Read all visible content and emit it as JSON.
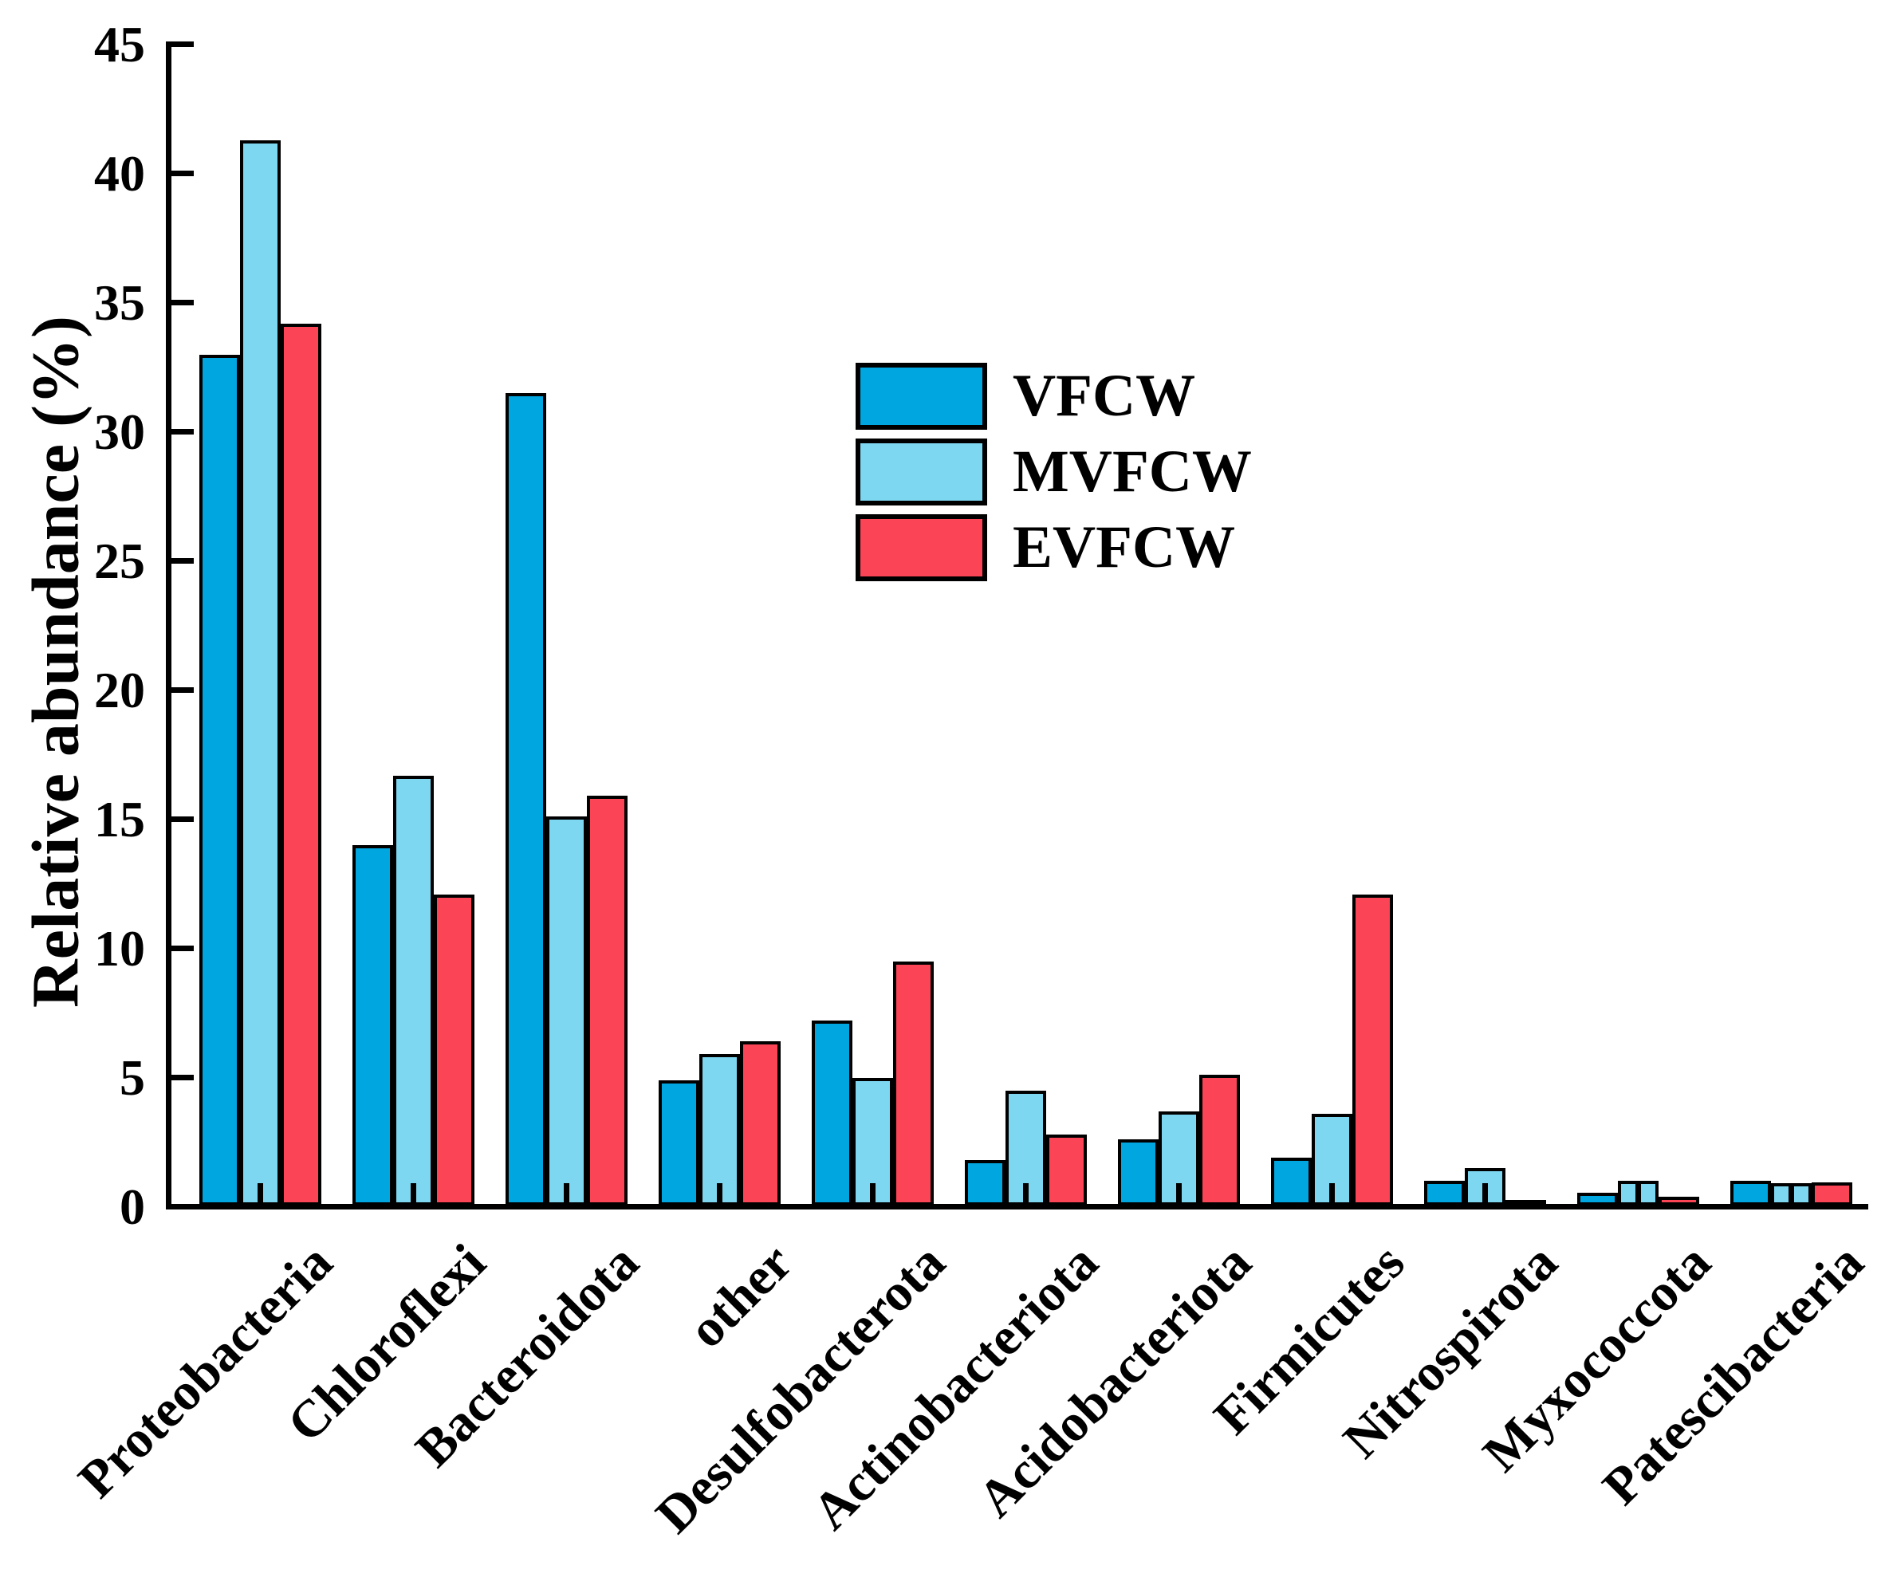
{
  "figure": {
    "background": "#ffffff",
    "axis_color": "#000000"
  },
  "chart_data": {
    "type": "bar",
    "title": "",
    "xlabel": "",
    "ylabel": "Relative abundance (%)",
    "ylim": [
      0,
      45
    ],
    "yticks": [
      0,
      5,
      10,
      15,
      20,
      25,
      30,
      35,
      40,
      45
    ],
    "grid": false,
    "tick_direction": "in",
    "legend": {
      "position": "inside-upper-middle",
      "entries": [
        "VFCW",
        "MVFCW",
        "EVFCW"
      ]
    },
    "categories": [
      "Proteobacteria",
      "Chloroflexi",
      "Bacteroidota",
      "other",
      "Desulfobacterota",
      "Actinobacteriota",
      "Acidobacteriota",
      "Firmicutes",
      "Nitrospirota",
      "Myxococcota",
      "Patescibacteria"
    ],
    "series": [
      {
        "name": "VFCW",
        "color": "#00a6df",
        "values": [
          33.0,
          14.0,
          31.5,
          4.9,
          7.2,
          1.8,
          2.6,
          1.9,
          1.0,
          0.55,
          1.0
        ]
      },
      {
        "name": "MVFCW",
        "color": "#7ed7f1",
        "values": [
          41.3,
          16.7,
          15.1,
          5.9,
          5.0,
          4.5,
          3.7,
          3.6,
          1.5,
          1.0,
          0.9
        ]
      },
      {
        "name": "EVFCW",
        "color": "#fb4557",
        "values": [
          34.2,
          12.1,
          15.9,
          6.4,
          9.5,
          2.8,
          5.1,
          12.1,
          0.25,
          0.4,
          0.95
        ]
      }
    ]
  }
}
